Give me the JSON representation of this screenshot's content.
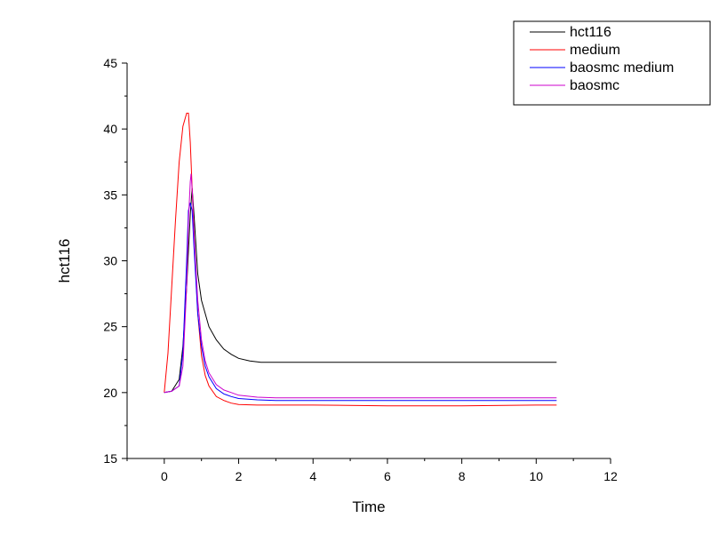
{
  "chart_data": {
    "type": "line",
    "title": "",
    "xlabel": "Time",
    "ylabel": "hct116",
    "xlim": [
      -1,
      12
    ],
    "ylim": [
      15,
      45
    ],
    "x_ticks": [
      0,
      2,
      4,
      6,
      8,
      10,
      12
    ],
    "y_ticks": [
      15,
      20,
      25,
      30,
      35,
      40,
      45
    ],
    "grid": false,
    "legend_position": "top-right",
    "series": [
      {
        "name": "hct116",
        "color": "#000000",
        "points": [
          [
            0,
            20
          ],
          [
            0.2,
            20.1
          ],
          [
            0.4,
            21
          ],
          [
            0.5,
            23.5
          ],
          [
            0.6,
            28
          ],
          [
            0.7,
            33.5
          ],
          [
            0.75,
            35.5
          ],
          [
            0.8,
            33.5
          ],
          [
            0.9,
            29
          ],
          [
            1.0,
            27
          ],
          [
            1.2,
            25
          ],
          [
            1.4,
            24
          ],
          [
            1.6,
            23.3
          ],
          [
            1.8,
            22.9
          ],
          [
            2.0,
            22.6
          ],
          [
            2.3,
            22.4
          ],
          [
            2.6,
            22.3
          ],
          [
            3,
            22.3
          ],
          [
            4,
            22.3
          ],
          [
            6,
            22.3
          ],
          [
            8,
            22.3
          ],
          [
            10,
            22.3
          ],
          [
            10.55,
            22.3
          ]
        ]
      },
      {
        "name": "medium",
        "color": "#ff0000",
        "points": [
          [
            0,
            20
          ],
          [
            0.1,
            23
          ],
          [
            0.2,
            28
          ],
          [
            0.3,
            33
          ],
          [
            0.4,
            37.5
          ],
          [
            0.5,
            40.2
          ],
          [
            0.6,
            41.2
          ],
          [
            0.65,
            41.2
          ],
          [
            0.7,
            39
          ],
          [
            0.8,
            32
          ],
          [
            0.9,
            26
          ],
          [
            1.0,
            22.8
          ],
          [
            1.1,
            21.3
          ],
          [
            1.2,
            20.5
          ],
          [
            1.4,
            19.7
          ],
          [
            1.6,
            19.4
          ],
          [
            1.8,
            19.2
          ],
          [
            2.0,
            19.1
          ],
          [
            2.5,
            19.05
          ],
          [
            4,
            19.05
          ],
          [
            6,
            19.0
          ],
          [
            8,
            19.0
          ],
          [
            10,
            19.05
          ],
          [
            10.55,
            19.05
          ]
        ]
      },
      {
        "name": "baosmc medium",
        "color": "#0000ff",
        "points": [
          [
            0,
            20
          ],
          [
            0.2,
            20.1
          ],
          [
            0.4,
            20.5
          ],
          [
            0.5,
            23
          ],
          [
            0.6,
            30
          ],
          [
            0.65,
            33.8
          ],
          [
            0.7,
            34.4
          ],
          [
            0.75,
            33.8
          ],
          [
            0.8,
            31
          ],
          [
            0.9,
            26
          ],
          [
            1.0,
            23.5
          ],
          [
            1.1,
            22
          ],
          [
            1.2,
            21.2
          ],
          [
            1.4,
            20.3
          ],
          [
            1.6,
            19.9
          ],
          [
            1.8,
            19.7
          ],
          [
            2.0,
            19.55
          ],
          [
            2.5,
            19.45
          ],
          [
            3,
            19.4
          ],
          [
            4,
            19.4
          ],
          [
            6,
            19.4
          ],
          [
            8,
            19.4
          ],
          [
            10,
            19.4
          ],
          [
            10.55,
            19.4
          ]
        ]
      },
      {
        "name": "baosmc",
        "color": "#cc00cc",
        "points": [
          [
            0,
            20
          ],
          [
            0.2,
            20.1
          ],
          [
            0.4,
            20.5
          ],
          [
            0.5,
            22
          ],
          [
            0.6,
            28
          ],
          [
            0.65,
            33
          ],
          [
            0.7,
            36
          ],
          [
            0.72,
            36.6
          ],
          [
            0.76,
            35
          ],
          [
            0.8,
            32
          ],
          [
            0.9,
            27
          ],
          [
            1.0,
            24
          ],
          [
            1.1,
            22.4
          ],
          [
            1.2,
            21.5
          ],
          [
            1.4,
            20.6
          ],
          [
            1.6,
            20.2
          ],
          [
            1.8,
            20.0
          ],
          [
            2.0,
            19.8
          ],
          [
            2.5,
            19.65
          ],
          [
            3,
            19.6
          ],
          [
            4,
            19.6
          ],
          [
            6,
            19.6
          ],
          [
            8,
            19.6
          ],
          [
            10,
            19.6
          ],
          [
            10.55,
            19.6
          ]
        ]
      }
    ]
  }
}
